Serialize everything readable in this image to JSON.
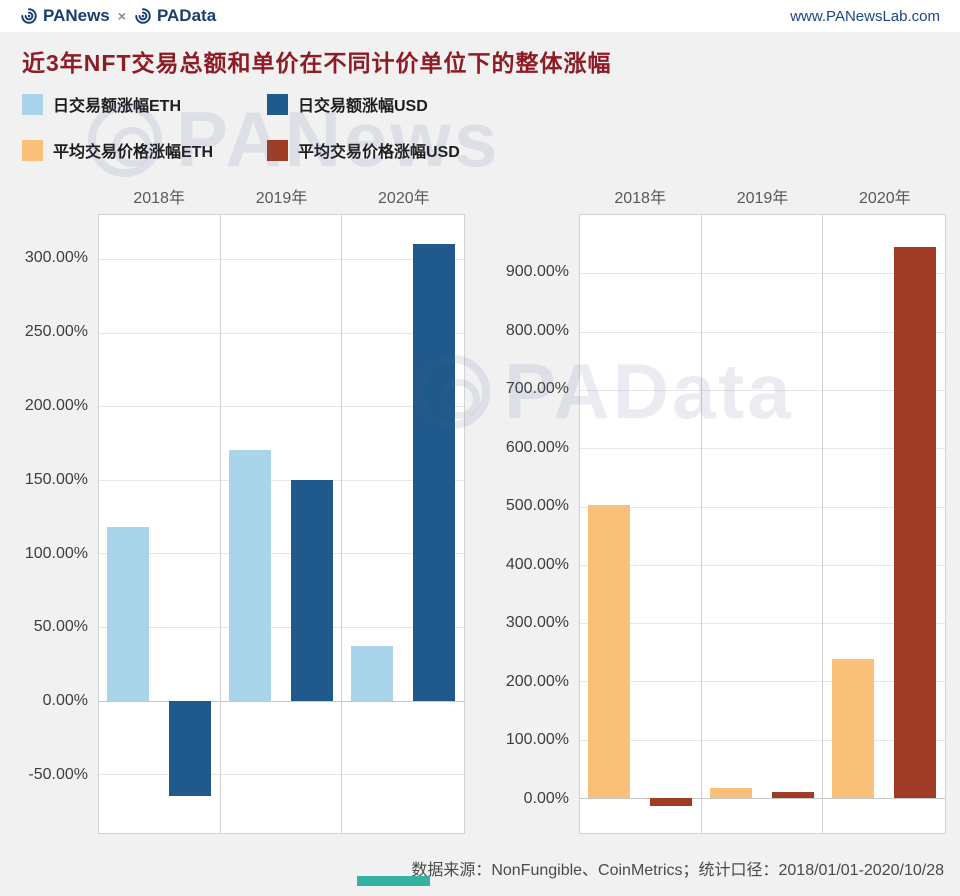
{
  "header": {
    "brand_left": "PANews",
    "brand_separator": "×",
    "brand_right": "PAData",
    "site_url": "www.PANewsLab.com"
  },
  "title": "近3年NFT交易总额和单价在不同计价单位下的整体涨幅",
  "legend": {
    "items": [
      {
        "label": "日交易额涨幅ETH",
        "color": "#a9d4ea"
      },
      {
        "label": "日交易额涨幅USD",
        "color": "#20598c"
      },
      {
        "label": "平均交易价格涨幅ETH",
        "color": "#f8c078"
      },
      {
        "label": "平均交易价格涨幅USD",
        "color": "#a03c25"
      }
    ]
  },
  "chart_data": [
    {
      "type": "bar",
      "categories": [
        "2018年",
        "2019年",
        "2020年"
      ],
      "series": [
        {
          "name": "日交易额涨幅ETH",
          "color": "#a9d4ea",
          "values": [
            118,
            170,
            37
          ]
        },
        {
          "name": "日交易额涨幅USD",
          "color": "#20598c",
          "values": [
            -65,
            150,
            310
          ]
        }
      ],
      "ylim": [
        -90,
        330
      ],
      "yticks": [
        -50,
        0,
        50,
        100,
        150,
        200,
        250,
        300
      ],
      "ylabel": "",
      "xlabel": "",
      "grid": true,
      "legend_position": "top"
    },
    {
      "type": "bar",
      "categories": [
        "2018年",
        "2019年",
        "2020年"
      ],
      "series": [
        {
          "name": "平均交易价格涨幅ETH",
          "color": "#f8c078",
          "values": [
            503,
            17,
            238
          ]
        },
        {
          "name": "平均交易价格涨幅USD",
          "color": "#a03c25",
          "values": [
            -13,
            11,
            945
          ]
        }
      ],
      "ylim": [
        -60,
        1000
      ],
      "yticks": [
        0,
        100,
        200,
        300,
        400,
        500,
        600,
        700,
        800,
        900
      ],
      "ylabel": "",
      "xlabel": "",
      "grid": true,
      "legend_position": "top"
    }
  ],
  "footer": {
    "source_text": "数据来源：NonFungible、CoinMetrics；统计口径：2018/01/01-2020/10/28"
  },
  "watermarks": [
    {
      "text": "PANews"
    },
    {
      "text": "PAData"
    }
  ]
}
